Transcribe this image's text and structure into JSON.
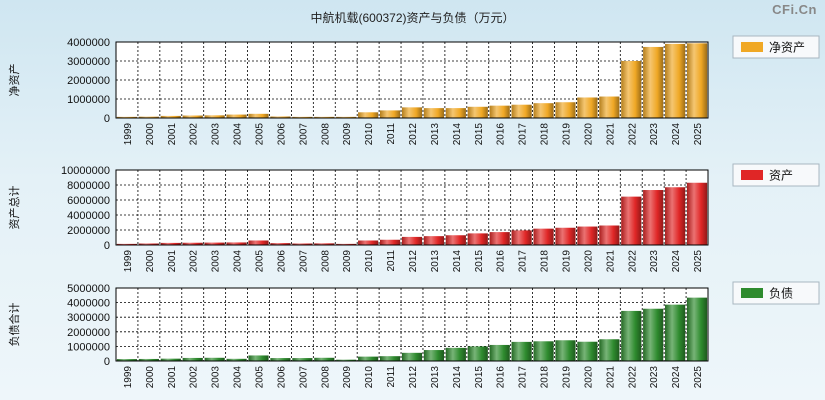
{
  "title": "中航机载(600372)资产与负债（万元）",
  "brand": "CFi.Cn",
  "chart_data": [
    {
      "type": "bar",
      "ylabel": "净资产",
      "legend": "净资产",
      "color": "#f0a825",
      "ylim": [
        0,
        4000000
      ],
      "yticks": [
        0,
        1000000,
        2000000,
        3000000,
        4000000
      ],
      "categories": [
        "1999",
        "2000",
        "2001",
        "2002",
        "2003",
        "2004",
        "2005",
        "2006",
        "2007",
        "2008",
        "2009",
        "2010",
        "2011",
        "2012",
        "2013",
        "2014",
        "2015",
        "2016",
        "2017",
        "2018",
        "2019",
        "2020",
        "2021",
        "2022",
        "2023",
        "2024",
        "2025"
      ],
      "values": [
        60000,
        70000,
        110000,
        130000,
        140000,
        180000,
        220000,
        80000,
        60000,
        60000,
        60000,
        300000,
        400000,
        560000,
        520000,
        520000,
        590000,
        650000,
        700000,
        780000,
        830000,
        1080000,
        1130000,
        3000000,
        3740000,
        3900000,
        3930000
      ]
    },
    {
      "type": "bar",
      "ylabel": "资产总计",
      "legend": "资产",
      "color": "#e02626",
      "ylim": [
        0,
        10000000
      ],
      "yticks": [
        0,
        2000000,
        4000000,
        6000000,
        8000000,
        10000000
      ],
      "categories": [
        "1999",
        "2000",
        "2001",
        "2002",
        "2003",
        "2004",
        "2005",
        "2006",
        "2007",
        "2008",
        "2009",
        "2010",
        "2011",
        "2012",
        "2013",
        "2014",
        "2015",
        "2016",
        "2017",
        "2018",
        "2019",
        "2020",
        "2021",
        "2022",
        "2023",
        "2024",
        "2025"
      ],
      "values": [
        150000,
        200000,
        280000,
        300000,
        320000,
        340000,
        600000,
        250000,
        200000,
        220000,
        150000,
        600000,
        700000,
        1080000,
        1180000,
        1300000,
        1550000,
        1720000,
        1950000,
        2180000,
        2300000,
        2460000,
        2600000,
        6450000,
        7330000,
        7700000,
        8300000
      ]
    },
    {
      "type": "bar",
      "ylabel": "负债合计",
      "legend": "负债",
      "color": "#2e8b2e",
      "ylim": [
        0,
        5000000
      ],
      "yticks": [
        0,
        1000000,
        2000000,
        3000000,
        4000000,
        5000000
      ],
      "categories": [
        "1999",
        "2000",
        "2001",
        "2002",
        "2003",
        "2004",
        "2005",
        "2006",
        "2007",
        "2008",
        "2009",
        "2010",
        "2011",
        "2012",
        "2013",
        "2014",
        "2015",
        "2016",
        "2017",
        "2018",
        "2019",
        "2020",
        "2021",
        "2022",
        "2023",
        "2024",
        "2025"
      ],
      "values": [
        130000,
        140000,
        160000,
        210000,
        220000,
        150000,
        380000,
        200000,
        200000,
        220000,
        90000,
        300000,
        330000,
        560000,
        750000,
        900000,
        1000000,
        1100000,
        1310000,
        1350000,
        1420000,
        1320000,
        1490000,
        3430000,
        3580000,
        3860000,
        4340000
      ]
    }
  ]
}
